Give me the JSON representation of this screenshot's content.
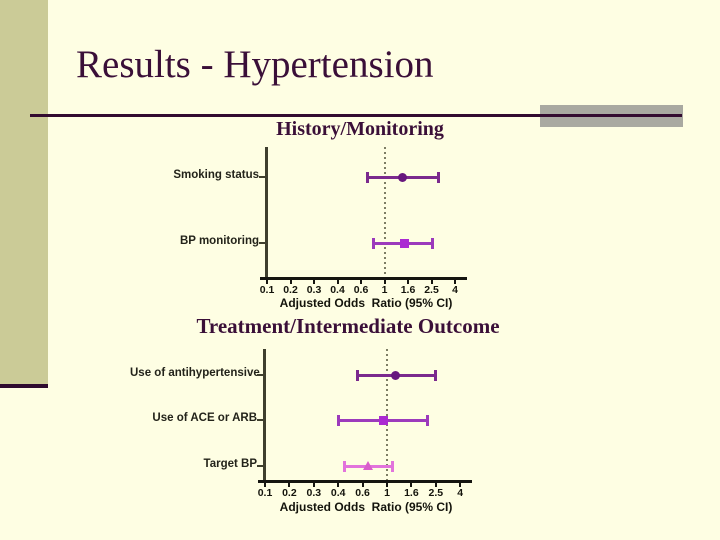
{
  "slide": {
    "title": "Results - Hypertension",
    "colors": {
      "background": "#FEFEE3",
      "sidebar_bar": "#CBCB97",
      "accent_maroon": "#3A0F38",
      "gray_block": "#A9A9A1"
    }
  },
  "chart_data": [
    {
      "type": "scatter",
      "subtype": "forest-plot",
      "title": "History/Monitoring",
      "xlabel": "Adjusted Odds  Ratio (95% CI)",
      "x_scale": "log-like (ticks evenly spaced)",
      "xlim": [
        0.1,
        4
      ],
      "x_ticks": [
        0.1,
        0.2,
        0.3,
        0.4,
        0.6,
        1,
        1.6,
        2.5,
        4
      ],
      "x_tick_labels": [
        "0.1",
        "0.2",
        "0.3",
        "0.4",
        "0.6",
        "1",
        "1.6",
        "2.5",
        "4"
      ],
      "reference_line_x": 1,
      "categories": [
        "Smoking status",
        "BP monitoring"
      ],
      "series": [
        {
          "name": "Smoking status",
          "or": 1.45,
          "ci": [
            0.7,
            3.0
          ],
          "marker": "circle",
          "color": "#7B2A8E",
          "marker_color": "#67177D"
        },
        {
          "name": "BP monitoring",
          "or": 1.5,
          "ci": [
            0.8,
            2.6
          ],
          "marker": "square",
          "color": "#9C3ABC",
          "marker_color": "#AB2AD2"
        }
      ]
    },
    {
      "type": "scatter",
      "subtype": "forest-plot",
      "title": "Treatment/Intermediate Outcome",
      "xlabel": "Adjusted Odds  Ratio (95% CI)",
      "x_scale": "log-like (ticks evenly spaced)",
      "xlim": [
        0.1,
        4
      ],
      "x_ticks": [
        0.1,
        0.2,
        0.3,
        0.4,
        0.6,
        1,
        1.6,
        2.5,
        4
      ],
      "x_tick_labels": [
        "0.1",
        "0.2",
        "0.3",
        "0.4",
        "0.6",
        "1",
        "1.6",
        "2.5",
        "4"
      ],
      "reference_line_x": 1,
      "categories": [
        "Use of antihypertensive",
        "Use of ACE or ARB",
        "Target BP"
      ],
      "series": [
        {
          "name": "Use of antihypertensive",
          "or": 1.2,
          "ci": [
            0.55,
            2.5
          ],
          "marker": "circle",
          "color": "#7B2A8E",
          "marker_color": "#67177D"
        },
        {
          "name": "Use of ACE or ARB",
          "or": 0.95,
          "ci": [
            0.4,
            2.2
          ],
          "marker": "square",
          "color": "#9C3ABC",
          "marker_color": "#AB2AD2"
        },
        {
          "name": "Target BP",
          "or": 0.7,
          "ci": [
            0.45,
            1.15
          ],
          "marker": "triangle",
          "color": "#E273DC",
          "marker_color": "#D95ECB"
        }
      ]
    }
  ]
}
